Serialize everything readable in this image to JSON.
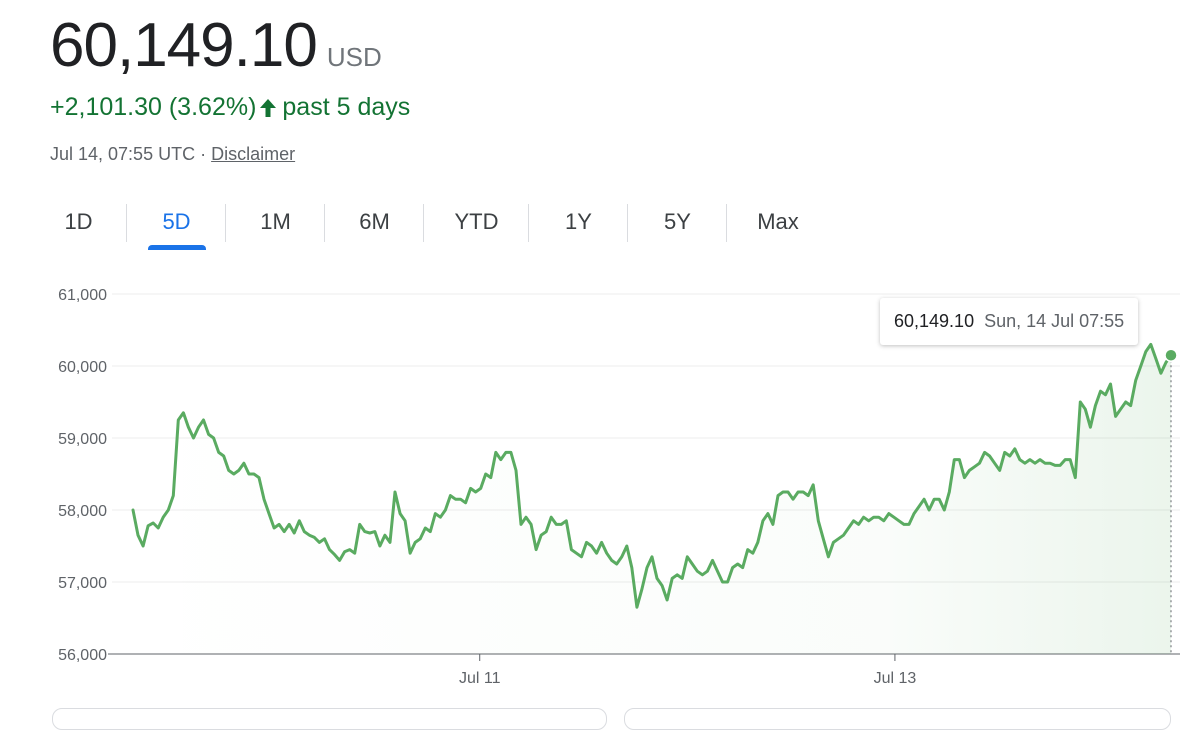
{
  "header": {
    "price": "60,149.10",
    "currency": "USD",
    "change": "+2,101.30 (3.62%)",
    "period": "past 5 days",
    "timestamp": "Jul 14, 07:55 UTC",
    "separator": "·",
    "disclaimer": "Disclaimer"
  },
  "tabs": [
    "1D",
    "5D",
    "1M",
    "6M",
    "YTD",
    "1Y",
    "5Y",
    "Max"
  ],
  "active_tab": "5D",
  "tooltip": {
    "value": "60,149.10",
    "date": "Sun, 14 Jul 07:55"
  },
  "colors": {
    "line": "#5aab61",
    "change": "#137333",
    "accent": "#1a73e8"
  },
  "chart_data": {
    "type": "line",
    "x_start": "2024-07-09T07:55",
    "x_end": "2024-07-14T07:55",
    "ylim": [
      56000,
      61000
    ],
    "yticks": [
      56000,
      57000,
      58000,
      59000,
      60000,
      61000
    ],
    "ytick_labels": [
      "56,000",
      "57,000",
      "58,000",
      "59,000",
      "60,000",
      "61,000"
    ],
    "xtick_labels": [
      "Jul 11",
      "Jul 13"
    ],
    "xtick_positions": [
      "2024-07-11T00:00",
      "2024-07-13T00:00"
    ],
    "grid": true,
    "series": [
      {
        "values": [
          58000,
          57650,
          57500,
          57780,
          57820,
          57750,
          57900,
          58000,
          58200,
          59250,
          59350,
          59150,
          59000,
          59150,
          59250,
          59050,
          59000,
          58800,
          58750,
          58550,
          58500,
          58550,
          58650,
          58500,
          58500,
          58450,
          58150,
          57950,
          57750,
          57800,
          57700,
          57800,
          57680,
          57850,
          57700,
          57650,
          57620,
          57550,
          57600,
          57450,
          57380,
          57300,
          57420,
          57450,
          57400,
          57800,
          57700,
          57680,
          57700,
          57500,
          57650,
          57550,
          58250,
          57950,
          57850,
          57400,
          57550,
          57600,
          57750,
          57700,
          57950,
          57900,
          58000,
          58200,
          58150,
          58150,
          58100,
          58300,
          58250,
          58300,
          58500,
          58450,
          58800,
          58700,
          58800,
          58800,
          58550,
          57800,
          57900,
          57800,
          57450,
          57650,
          57700,
          57900,
          57800,
          57800,
          57850,
          57450,
          57400,
          57350,
          57550,
          57500,
          57400,
          57550,
          57400,
          57300,
          57250,
          57350,
          57500,
          57200,
          56650,
          56900,
          57200,
          57350,
          57050,
          56950,
          56750,
          57050,
          57100,
          57050,
          57350,
          57250,
          57150,
          57100,
          57150,
          57300,
          57150,
          57000,
          57000,
          57200,
          57250,
          57200,
          57450,
          57400,
          57550,
          57850,
          57950,
          57800,
          58200,
          58250,
          58250,
          58150,
          58250,
          58250,
          58200,
          58350,
          57850,
          57600,
          57350,
          57550,
          57600,
          57650,
          57750,
          57850,
          57800,
          57900,
          57850,
          57900,
          57900,
          57850,
          57950,
          57900,
          57850,
          57800,
          57800,
          57950,
          58050,
          58150,
          58000,
          58150,
          58150,
          58000,
          58250,
          58700,
          58700,
          58450,
          58550,
          58600,
          58650,
          58800,
          58750,
          58650,
          58550,
          58800,
          58750,
          58850,
          58700,
          58650,
          58700,
          58650,
          58700,
          58650,
          58650,
          58620,
          58620,
          58700,
          58700,
          58450,
          59500,
          59400,
          59150,
          59450,
          59650,
          59600,
          59750,
          59300,
          59400,
          59500,
          59450,
          59800,
          60000,
          60200,
          60300,
          60100,
          59900,
          60050,
          60149.1
        ]
      }
    ]
  }
}
